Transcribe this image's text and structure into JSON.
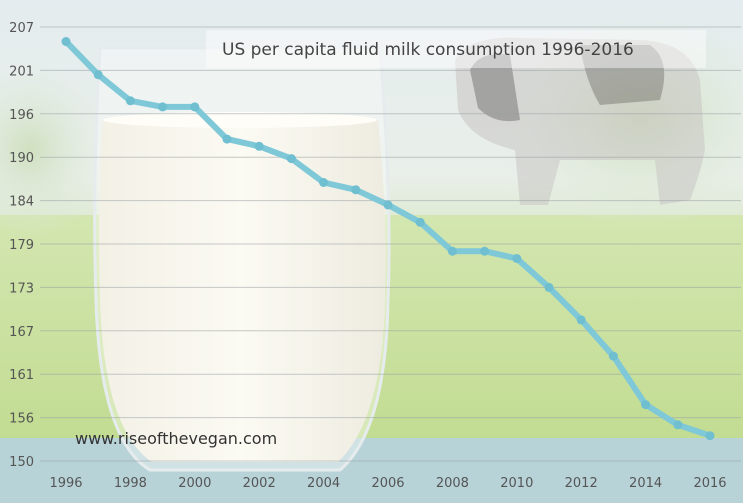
{
  "chart_data": {
    "type": "line",
    "title": "US per capita fluid milk consumption 1996-2016",
    "xlabel": "",
    "ylabel": "",
    "x": [
      1996,
      1997,
      1998,
      1999,
      2000,
      2001,
      2002,
      2003,
      2004,
      2005,
      2006,
      2007,
      2008,
      2009,
      2010,
      2011,
      2012,
      2013,
      2014,
      2015,
      2016
    ],
    "series": [
      {
        "values": [
          205,
          200.5,
          197.5,
          196.8,
          196.8,
          192.5,
          191.5,
          189.8,
          186.5,
          185.5,
          183.5,
          181.5,
          178,
          178,
          177,
          173,
          168.5,
          163.5,
          157.5,
          155,
          153.5
        ]
      }
    ],
    "xticks": [
      "1996",
      "1998",
      "2000",
      "2002",
      "2004",
      "2006",
      "2008",
      "2010",
      "2012",
      "2014",
      "2016"
    ],
    "yticks": [
      "207",
      "201",
      "196",
      "190",
      "184",
      "179",
      "173",
      "167",
      "161",
      "156",
      "150"
    ],
    "ylim": [
      150,
      207
    ],
    "xlim": [
      1996,
      2016
    ],
    "grid": true,
    "line_color": "#7ec8d8",
    "marker_color": "#6fbfd1"
  },
  "watermark": "www.riseofthevegan.com"
}
